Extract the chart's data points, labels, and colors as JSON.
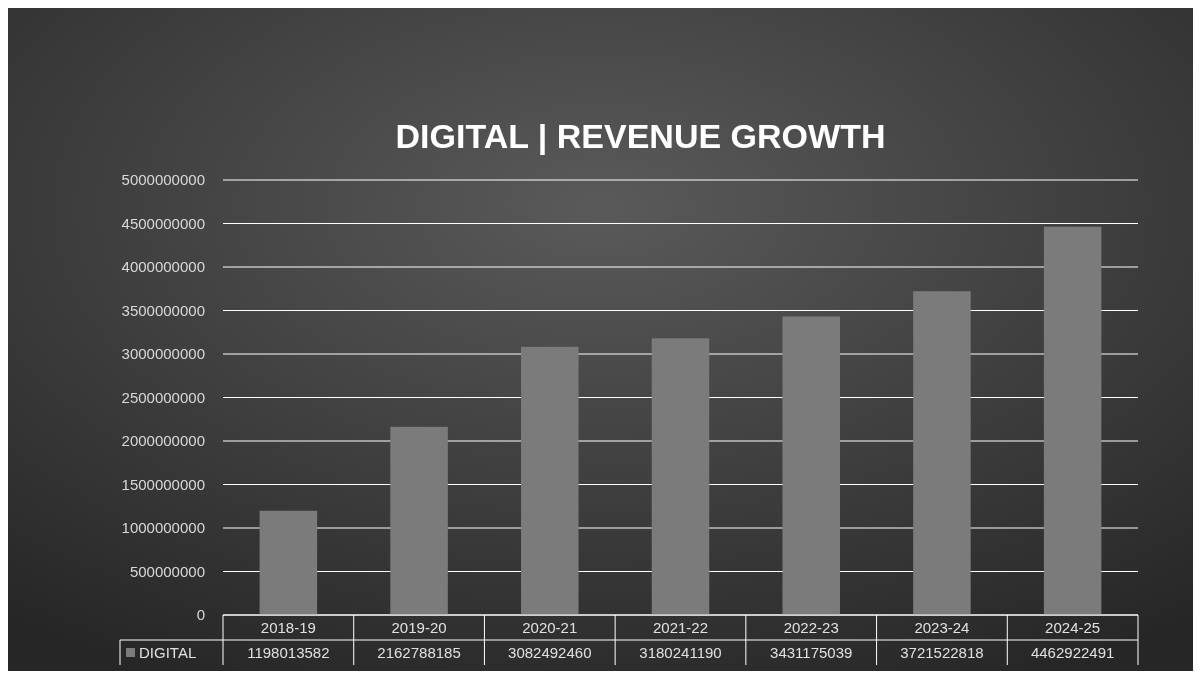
{
  "chart_data": {
    "type": "bar",
    "title": "DIGITAL | REVENUE GROWTH",
    "categories": [
      "2018-19",
      "2019-20",
      "2020-21",
      "2021-22",
      "2022-23",
      "2023-24",
      "2024-25"
    ],
    "series": [
      {
        "name": "DIGITAL",
        "color": "#7b7b7b",
        "values": [
          1198013582,
          2162788185,
          3082492460,
          3180241190,
          3431175039,
          3721522818,
          4462922491
        ]
      }
    ],
    "ylim": [
      0,
      5000000000
    ],
    "yticks": [
      0,
      500000000,
      1000000000,
      1500000000,
      2000000000,
      2500000000,
      3000000000,
      3500000000,
      4000000000,
      4500000000,
      5000000000
    ],
    "grid": "y",
    "data_labels": true,
    "legend": "bottom left"
  }
}
